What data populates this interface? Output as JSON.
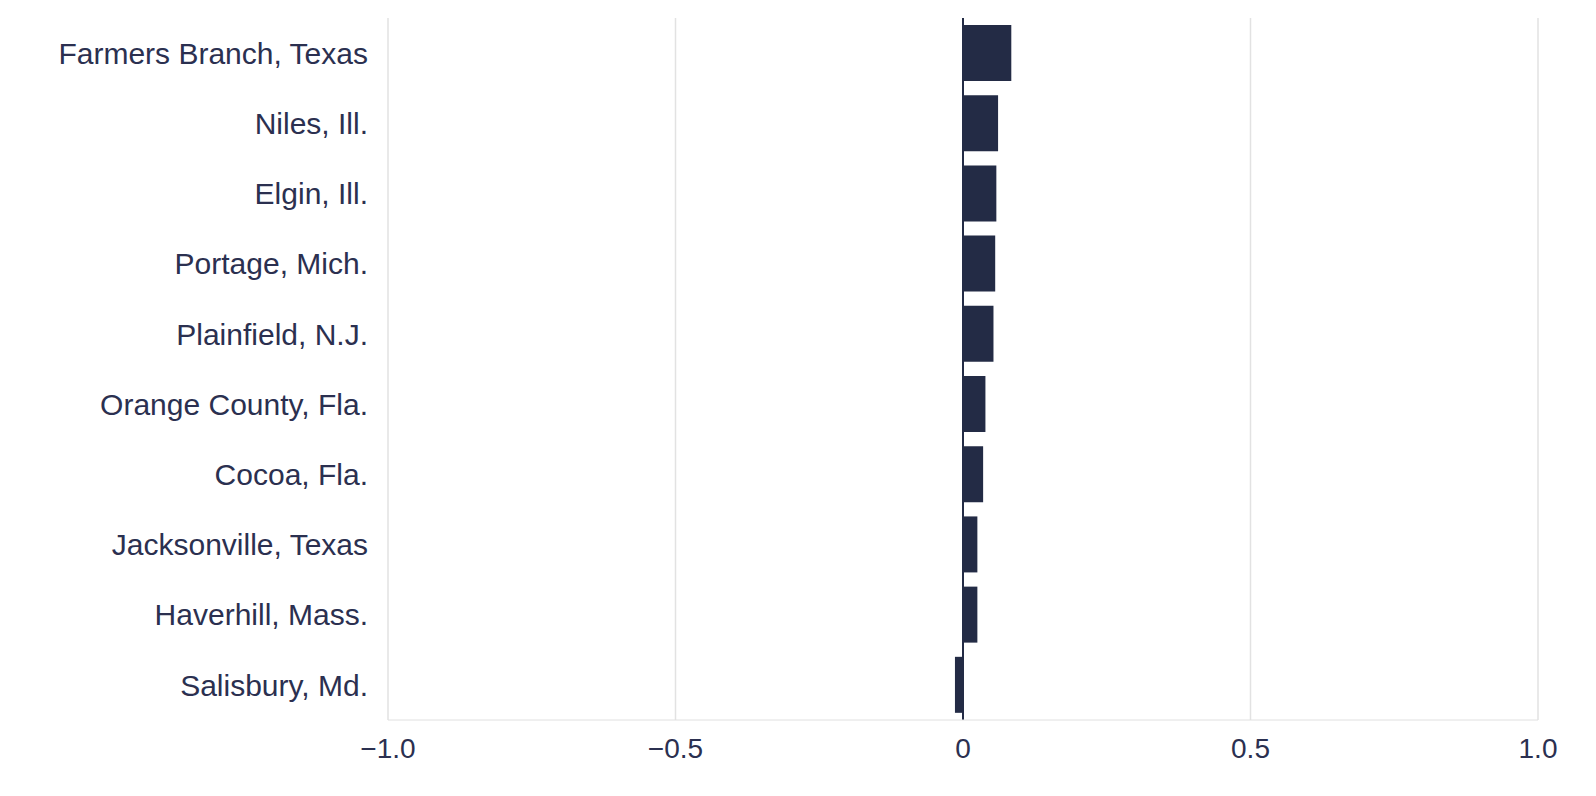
{
  "chart_data": {
    "type": "bar",
    "orientation": "horizontal",
    "categories": [
      "Farmers Branch, Texas",
      "Niles, Ill.",
      "Elgin, Ill.",
      "Portage, Mich.",
      "Plainfield, N.J.",
      "Orange County, Fla.",
      "Cocoa, Fla.",
      "Jacksonville, Texas",
      "Haverhill, Mass.",
      "Salisbury, Md."
    ],
    "values": [
      0.084,
      0.061,
      0.058,
      0.056,
      0.053,
      0.039,
      0.035,
      0.025,
      0.025,
      -0.014
    ],
    "color": "#232b45",
    "xlim": [
      -1,
      1
    ],
    "xticks": [
      {
        "value": -1,
        "label": "−1.0"
      },
      {
        "value": -0.5,
        "label": "−0.5"
      },
      0,
      0.5,
      {
        "value": 1,
        "label": "1.0"
      }
    ],
    "grid": true
  }
}
